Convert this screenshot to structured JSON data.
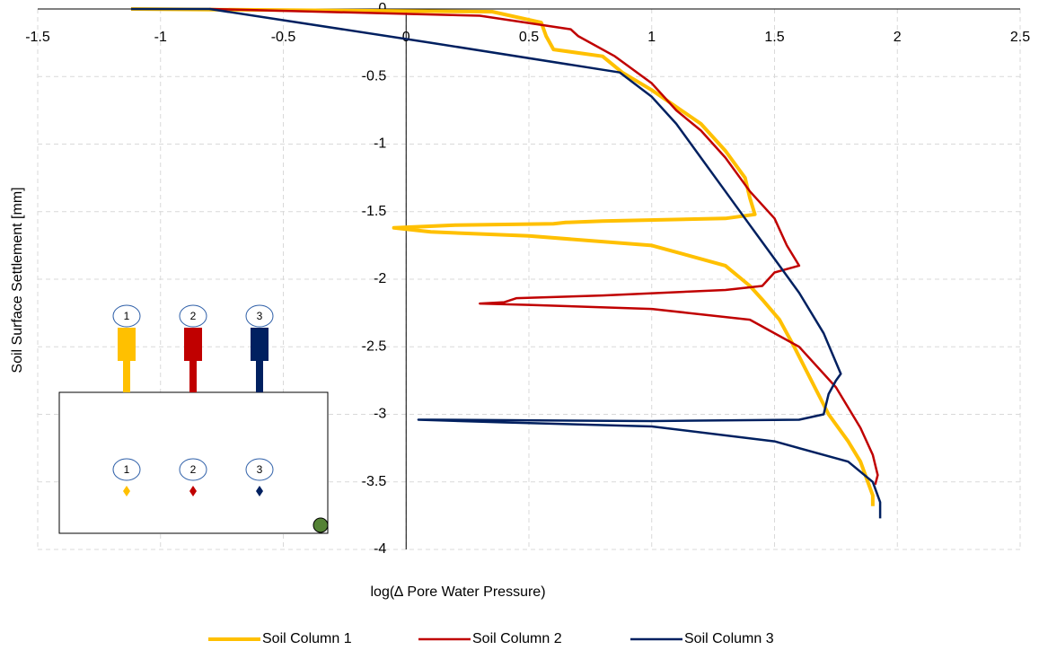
{
  "chart_data": {
    "type": "line",
    "x_label": "log(∆ Pore Water Pressure)",
    "y_label": "Soil Surface Settlement [mm]",
    "xlim": [
      -1.5,
      2.5
    ],
    "xticks": [
      -1.5,
      -1,
      -0.5,
      0,
      0.5,
      1,
      1.5,
      2,
      2.5
    ],
    "ylim": [
      -4,
      0
    ],
    "yticks": [
      0,
      -0.5,
      -1,
      -1.5,
      -2,
      -2.5,
      -3,
      -3.5,
      -4
    ],
    "grid": true,
    "legend": "bottom",
    "inset_labels": [
      "1",
      "2",
      "3"
    ],
    "series": [
      {
        "name": "Soil Column 1",
        "color": "#FFC000",
        "x": [
          -1.12,
          0.35,
          0.55,
          0.57,
          0.6,
          0.8,
          0.88,
          1.0,
          1.2,
          1.3,
          1.38,
          1.4,
          1.42,
          1.3,
          0.8,
          0.65,
          0.6,
          0.2,
          -0.05,
          0.1,
          0.5,
          1.0,
          1.3,
          1.4,
          1.45,
          1.52,
          1.58,
          1.65,
          1.72,
          1.8,
          1.85,
          1.88,
          1.9,
          1.9
        ],
        "values": [
          0,
          -0.02,
          -0.1,
          -0.2,
          -0.3,
          -0.35,
          -0.47,
          -0.6,
          -0.85,
          -1.05,
          -1.25,
          -1.4,
          -1.52,
          -1.55,
          -1.57,
          -1.58,
          -1.59,
          -1.6,
          -1.62,
          -1.65,
          -1.68,
          -1.75,
          -1.9,
          -2.05,
          -2.15,
          -2.3,
          -2.5,
          -2.75,
          -3.0,
          -3.2,
          -3.35,
          -3.5,
          -3.6,
          -3.68
        ]
      },
      {
        "name": "Soil Column 2",
        "color": "#C00000",
        "x": [
          -0.8,
          0.3,
          0.67,
          0.7,
          0.85,
          1.0,
          1.1,
          1.2,
          1.3,
          1.4,
          1.5,
          1.55,
          1.6,
          1.5,
          1.45,
          1.3,
          0.8,
          0.45,
          0.4,
          0.3,
          0.5,
          1.0,
          1.4,
          1.6,
          1.75,
          1.85,
          1.9,
          1.92,
          1.91
        ],
        "values": [
          0,
          -0.05,
          -0.15,
          -0.2,
          -0.35,
          -0.55,
          -0.75,
          -0.9,
          -1.1,
          -1.35,
          -1.55,
          -1.75,
          -1.9,
          -1.95,
          -2.05,
          -2.08,
          -2.12,
          -2.14,
          -2.17,
          -2.18,
          -2.19,
          -2.22,
          -2.3,
          -2.5,
          -2.8,
          -3.1,
          -3.3,
          -3.45,
          -3.52
        ]
      },
      {
        "name": "Soil Column 3",
        "color": "#002060",
        "x": [
          -1.12,
          -0.8,
          0.1,
          0.87,
          1.0,
          1.1,
          1.2,
          1.3,
          1.4,
          1.5,
          1.6,
          1.7,
          1.77,
          1.75,
          1.72,
          1.7,
          1.6,
          1.0,
          0.1,
          0.05,
          0.4,
          1.0,
          1.5,
          1.8,
          1.9,
          1.93,
          1.93
        ],
        "values": [
          0,
          0,
          -0.25,
          -0.47,
          -0.65,
          -0.85,
          -1.1,
          -1.35,
          -1.6,
          -1.85,
          -2.1,
          -2.4,
          -2.7,
          -2.75,
          -2.85,
          -3.0,
          -3.04,
          -3.05,
          -3.04,
          -3.04,
          -3.06,
          -3.09,
          -3.2,
          -3.35,
          -3.5,
          -3.65,
          -3.77
        ]
      }
    ]
  }
}
